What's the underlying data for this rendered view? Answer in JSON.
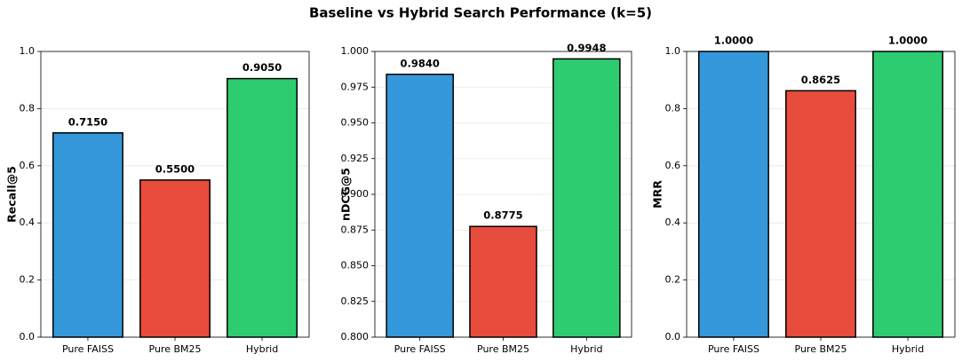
{
  "title": "Baseline vs Hybrid Search Performance (k=5)",
  "chart_data": [
    {
      "type": "bar",
      "ylabel": "Recall@5",
      "categories": [
        "Pure FAISS",
        "Pure BM25",
        "Hybrid"
      ],
      "values": [
        0.715,
        0.55,
        0.905
      ],
      "value_labels": [
        "0.7150",
        "0.5500",
        "0.9050"
      ],
      "colors": [
        "#3498db",
        "#e74c3c",
        "#2ecc71"
      ],
      "ylim": [
        0,
        1
      ],
      "yticks": [
        {
          "value": 0,
          "label": "0.0"
        },
        0.2,
        0.4,
        0.6,
        0.8,
        {
          "value": 1,
          "label": "1.0"
        }
      ],
      "grid": true
    },
    {
      "type": "bar",
      "ylabel": "nDCG@5",
      "categories": [
        "Pure FAISS",
        "Pure BM25",
        "Hybrid"
      ],
      "values": [
        0.984,
        0.8775,
        0.9948
      ],
      "value_labels": [
        "0.9840",
        "0.8775",
        "0.9948"
      ],
      "colors": [
        "#3498db",
        "#e74c3c",
        "#2ecc71"
      ],
      "ylim": [
        0.8,
        1
      ],
      "yticks": [
        {
          "value": 0.8,
          "label": "0.800"
        },
        0.825,
        {
          "value": 0.85,
          "label": "0.850"
        },
        0.875,
        {
          "value": 0.9,
          "label": "0.900"
        },
        0.925,
        {
          "value": 0.95,
          "label": "0.950"
        },
        0.975,
        {
          "value": 1,
          "label": "1.000"
        }
      ],
      "grid": true
    },
    {
      "type": "bar",
      "ylabel": "MRR",
      "categories": [
        "Pure FAISS",
        "Pure BM25",
        "Hybrid"
      ],
      "values": [
        1,
        0.8625,
        1
      ],
      "value_labels": [
        "1.0000",
        "0.8625",
        "1.0000"
      ],
      "colors": [
        "#3498db",
        "#e74c3c",
        "#2ecc71"
      ],
      "ylim": [
        0,
        1
      ],
      "yticks": [
        {
          "value": 0,
          "label": "0.0"
        },
        0.2,
        0.4,
        0.6,
        0.8,
        {
          "value": 1,
          "label": "1.0"
        }
      ],
      "grid": true
    }
  ]
}
